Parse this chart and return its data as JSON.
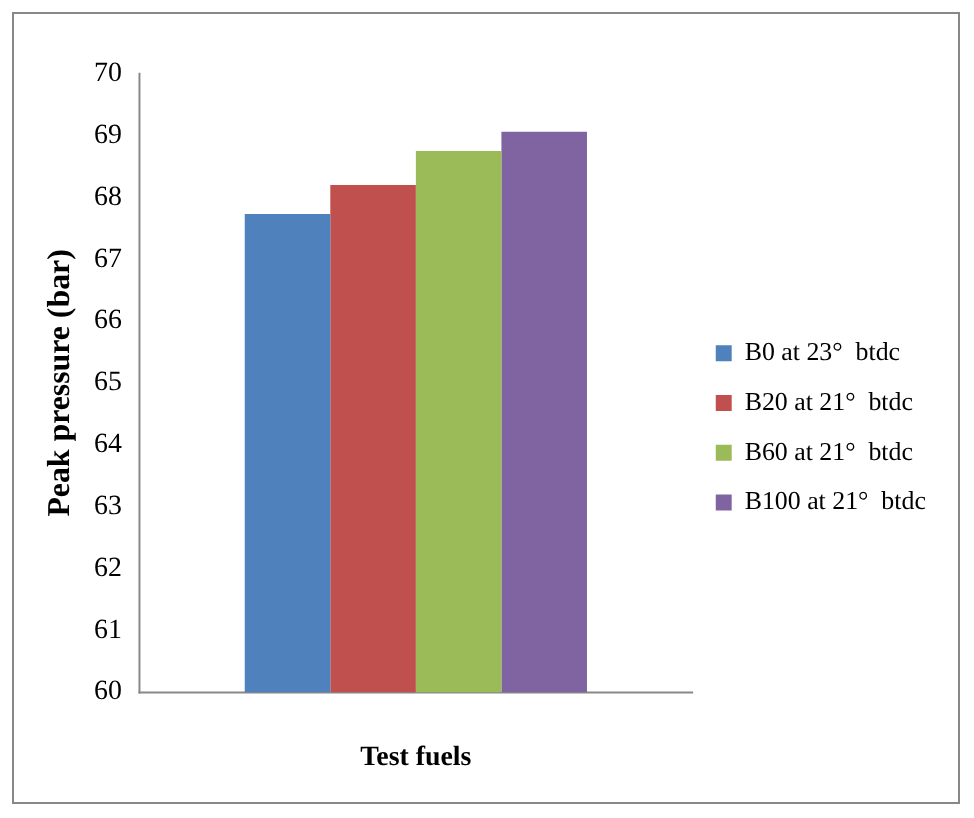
{
  "chart_data": {
    "type": "bar",
    "xlabel": "Test fuels",
    "ylabel": "Peak pressure (bar)",
    "categories": [
      null
    ],
    "series": [
      {
        "name": "B0 at 23°  btdc",
        "color": "#4f81bd",
        "values": [
          67.73
        ]
      },
      {
        "name": "B20 at 21°  btdc",
        "color": "#c0504d",
        "values": [
          68.2
        ]
      },
      {
        "name": "B60 at 21°  btdc",
        "color": "#9bbb59",
        "values": [
          68.75
        ]
      },
      {
        "name": "B100 at 21°  btdc",
        "color": "#8064a2",
        "values": [
          69.06
        ]
      }
    ],
    "ylim": [
      60,
      70
    ],
    "yticks": [
      60,
      61,
      62,
      63,
      64,
      65,
      66,
      67,
      68,
      69,
      70
    ],
    "grid": false,
    "legend": "right"
  }
}
